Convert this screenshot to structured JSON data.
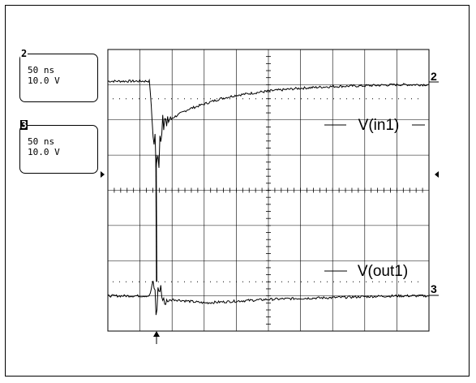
{
  "channels": [
    {
      "number": "2",
      "timebase": "50 ns",
      "volts": "10.0 V"
    },
    {
      "number": "3",
      "timebase": "50 ns",
      "volts": "10.0 V"
    }
  ],
  "chart_data": {
    "type": "line",
    "title": "",
    "xlabel": "",
    "ylabel": "",
    "grid": true,
    "time_per_div": "50 ns",
    "volts_per_div": "10.0 V",
    "series": [
      {
        "name": "V(in1)",
        "marker": "2",
        "color": "#000000",
        "x_div": [
          0,
          1.3,
          1.42,
          1.55,
          1.7,
          2.0,
          2.5,
          3.0,
          3.5,
          4.0,
          5.0,
          6.0,
          7.0,
          8.0,
          9.0,
          10.0
        ],
        "y_div": [
          3.1,
          3.1,
          1.4,
          0.7,
          1.9,
          2.05,
          2.3,
          2.45,
          2.6,
          2.7,
          2.82,
          2.9,
          2.95,
          2.97,
          3.0,
          3.0
        ]
      },
      {
        "name": "V(out1)",
        "marker": "3",
        "color": "#000000",
        "x_div": [
          0,
          1.3,
          1.42,
          1.5,
          1.6,
          1.75,
          2.0,
          2.5,
          3.0,
          4.0,
          5.0,
          6.0,
          7.0,
          8.0,
          9.0,
          10.0
        ],
        "y_div": [
          -3.0,
          -3.0,
          -2.55,
          -3.45,
          -2.7,
          -3.2,
          -3.1,
          -3.15,
          -3.2,
          -3.15,
          -3.1,
          -3.07,
          -3.05,
          -3.02,
          -3.0,
          -3.0
        ]
      }
    ],
    "annotations": [
      "V(in1)",
      "V(out1)"
    ]
  }
}
